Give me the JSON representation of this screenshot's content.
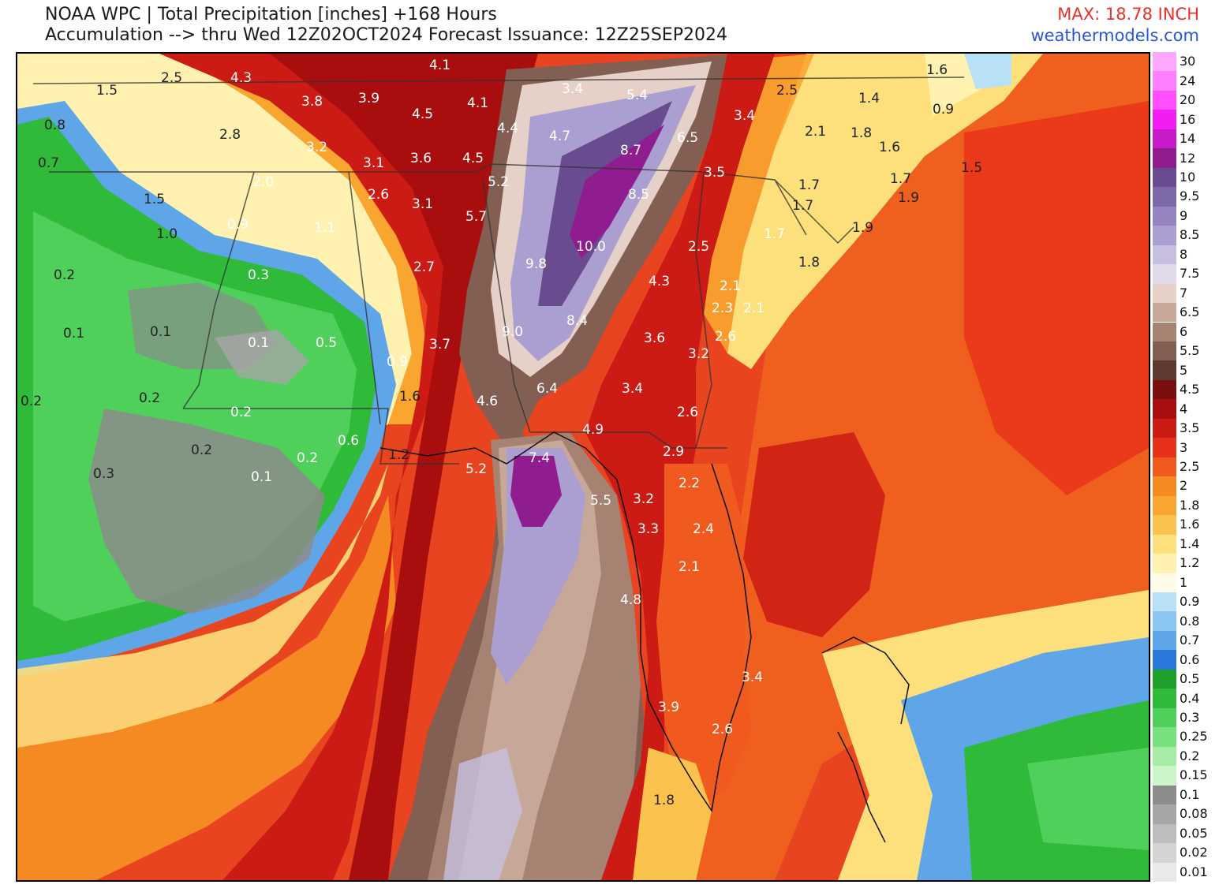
{
  "header": {
    "title": "NOAA WPC | Total Precipitation [inches] +168 Hours",
    "subtitle": "Accumulation --> thru Wed 12Z02OCT2024   Forecast Issuance: 12Z25SEP2024",
    "max_label": "MAX: 18.78 INCH",
    "site": "weathermodels.com"
  },
  "colors": {
    "max_text": "#e8312a",
    "site_text": "#2a56d6"
  },
  "legend": {
    "items": [
      {
        "label": "30",
        "color": "#ffa6ff"
      },
      {
        "label": "24",
        "color": "#ff80ff"
      },
      {
        "label": "20",
        "color": "#ff4dff"
      },
      {
        "label": "16",
        "color": "#f21df2"
      },
      {
        "label": "14",
        "color": "#c81ac8"
      },
      {
        "label": "12",
        "color": "#8f1d8f"
      },
      {
        "label": "10",
        "color": "#684c8f"
      },
      {
        "label": "9.5",
        "color": "#7d68a8"
      },
      {
        "label": "9",
        "color": "#9584bf"
      },
      {
        "label": "8.5",
        "color": "#ab9fd1"
      },
      {
        "label": "8",
        "color": "#c6bfe0"
      },
      {
        "label": "7.5",
        "color": "#e0daea"
      },
      {
        "label": "7",
        "color": "#e6d1c8"
      },
      {
        "label": "6.5",
        "color": "#c7a898"
      },
      {
        "label": "6",
        "color": "#a58272"
      },
      {
        "label": "5.5",
        "color": "#835e52"
      },
      {
        "label": "5",
        "color": "#5e3a32"
      },
      {
        "label": "4.5",
        "color": "#7a0f10"
      },
      {
        "label": "4",
        "color": "#a80e0e"
      },
      {
        "label": "3.5",
        "color": "#cc1a14"
      },
      {
        "label": "3",
        "color": "#e8311a"
      },
      {
        "label": "2.5",
        "color": "#f05a1e"
      },
      {
        "label": "2",
        "color": "#f68a22"
      },
      {
        "label": "1.8",
        "color": "#f9a630"
      },
      {
        "label": "1.6",
        "color": "#fbc24e"
      },
      {
        "label": "1.4",
        "color": "#fde07c"
      },
      {
        "label": "1.2",
        "color": "#fff2b0"
      },
      {
        "label": "1",
        "color": "#fffbe8"
      },
      {
        "label": "0.9",
        "color": "#b8e1f8"
      },
      {
        "label": "0.8",
        "color": "#8ac6f0"
      },
      {
        "label": "0.7",
        "color": "#5ea6e8"
      },
      {
        "label": "0.6",
        "color": "#2a78dc"
      },
      {
        "label": "0.5",
        "color": "#1fa02a"
      },
      {
        "label": "0.4",
        "color": "#2fba3a"
      },
      {
        "label": "0.3",
        "color": "#4fd05a"
      },
      {
        "label": "0.25",
        "color": "#78e07e"
      },
      {
        "label": "0.2",
        "color": "#a6eca6"
      },
      {
        "label": "0.15",
        "color": "#cdf5cc"
      },
      {
        "label": "0.1",
        "color": "#8c8c8c"
      },
      {
        "label": "0.08",
        "color": "#a6a6a6"
      },
      {
        "label": "0.05",
        "color": "#bdbdbd"
      },
      {
        "label": "0.02",
        "color": "#d4d4d4"
      },
      {
        "label": "0.01",
        "color": "#e9e9e9"
      }
    ]
  },
  "map_values": [
    {
      "v": "2.5"
    },
    {
      "v": "4.3"
    },
    {
      "v": "4.1"
    },
    {
      "v": "1.5"
    },
    {
      "v": "3.8"
    },
    {
      "v": "3.9"
    },
    {
      "v": "4.5"
    },
    {
      "v": "4.1"
    },
    {
      "v": "3.4"
    },
    {
      "v": "5.4"
    },
    {
      "v": "2.5"
    },
    {
      "v": "1.4"
    },
    {
      "v": "0.9"
    },
    {
      "v": "1.6"
    },
    {
      "v": "0.8"
    },
    {
      "v": "2.8"
    },
    {
      "v": "3.2"
    },
    {
      "v": "4.4"
    },
    {
      "v": "4.7"
    },
    {
      "v": "6.5"
    },
    {
      "v": "3.4"
    },
    {
      "v": "2.1"
    },
    {
      "v": "1.8"
    },
    {
      "v": "1.6"
    },
    {
      "v": "0.7"
    },
    {
      "v": "3.1"
    },
    {
      "v": "3.6"
    },
    {
      "v": "4.5"
    },
    {
      "v": "8.7"
    },
    {
      "v": "1.5"
    },
    {
      "v": "2.0"
    },
    {
      "v": "5.2"
    },
    {
      "v": "3.5"
    },
    {
      "v": "1.7"
    },
    {
      "v": "1.7"
    },
    {
      "v": "1.5"
    },
    {
      "v": "2.6"
    },
    {
      "v": "3.1"
    },
    {
      "v": "8.5"
    },
    {
      "v": "1.9"
    },
    {
      "v": "1.7"
    },
    {
      "v": "1.0"
    },
    {
      "v": "0.9"
    },
    {
      "v": "1.1"
    },
    {
      "v": "5.7"
    },
    {
      "v": "1.7"
    },
    {
      "v": "1.9"
    },
    {
      "v": "10.0"
    },
    {
      "v": "2.5"
    },
    {
      "v": "1.8"
    },
    {
      "v": "0.2"
    },
    {
      "v": "0.3"
    },
    {
      "v": "2.7"
    },
    {
      "v": "9.8"
    },
    {
      "v": "4.3"
    },
    {
      "v": "2.1"
    },
    {
      "v": "2.3"
    },
    {
      "v": "2.1"
    },
    {
      "v": "8.4"
    },
    {
      "v": "0.1"
    },
    {
      "v": "0.1"
    },
    {
      "v": "0.1"
    },
    {
      "v": "0.5"
    },
    {
      "v": "9.0"
    },
    {
      "v": "3.6"
    },
    {
      "v": "2.6"
    },
    {
      "v": "3.7"
    },
    {
      "v": "0.9"
    },
    {
      "v": "3.2"
    },
    {
      "v": "6.4"
    },
    {
      "v": "3.4"
    },
    {
      "v": "0.2"
    },
    {
      "v": "0.2"
    },
    {
      "v": "1.6"
    },
    {
      "v": "4.6"
    },
    {
      "v": "0.2"
    },
    {
      "v": "2.6"
    },
    {
      "v": "4.9"
    },
    {
      "v": "0.6"
    },
    {
      "v": "0.2"
    },
    {
      "v": "0.2"
    },
    {
      "v": "1.2"
    },
    {
      "v": "2.9"
    },
    {
      "v": "7.4"
    },
    {
      "v": "0.3"
    },
    {
      "v": "0.1"
    },
    {
      "v": "5.2"
    },
    {
      "v": "2.2"
    },
    {
      "v": "5.5"
    },
    {
      "v": "3.2"
    },
    {
      "v": "3.3"
    },
    {
      "v": "2.4"
    },
    {
      "v": "2.1"
    },
    {
      "v": "4.8"
    },
    {
      "v": "3.4"
    },
    {
      "v": "3.9"
    },
    {
      "v": "2.6"
    },
    {
      "v": "1.8"
    }
  ]
}
